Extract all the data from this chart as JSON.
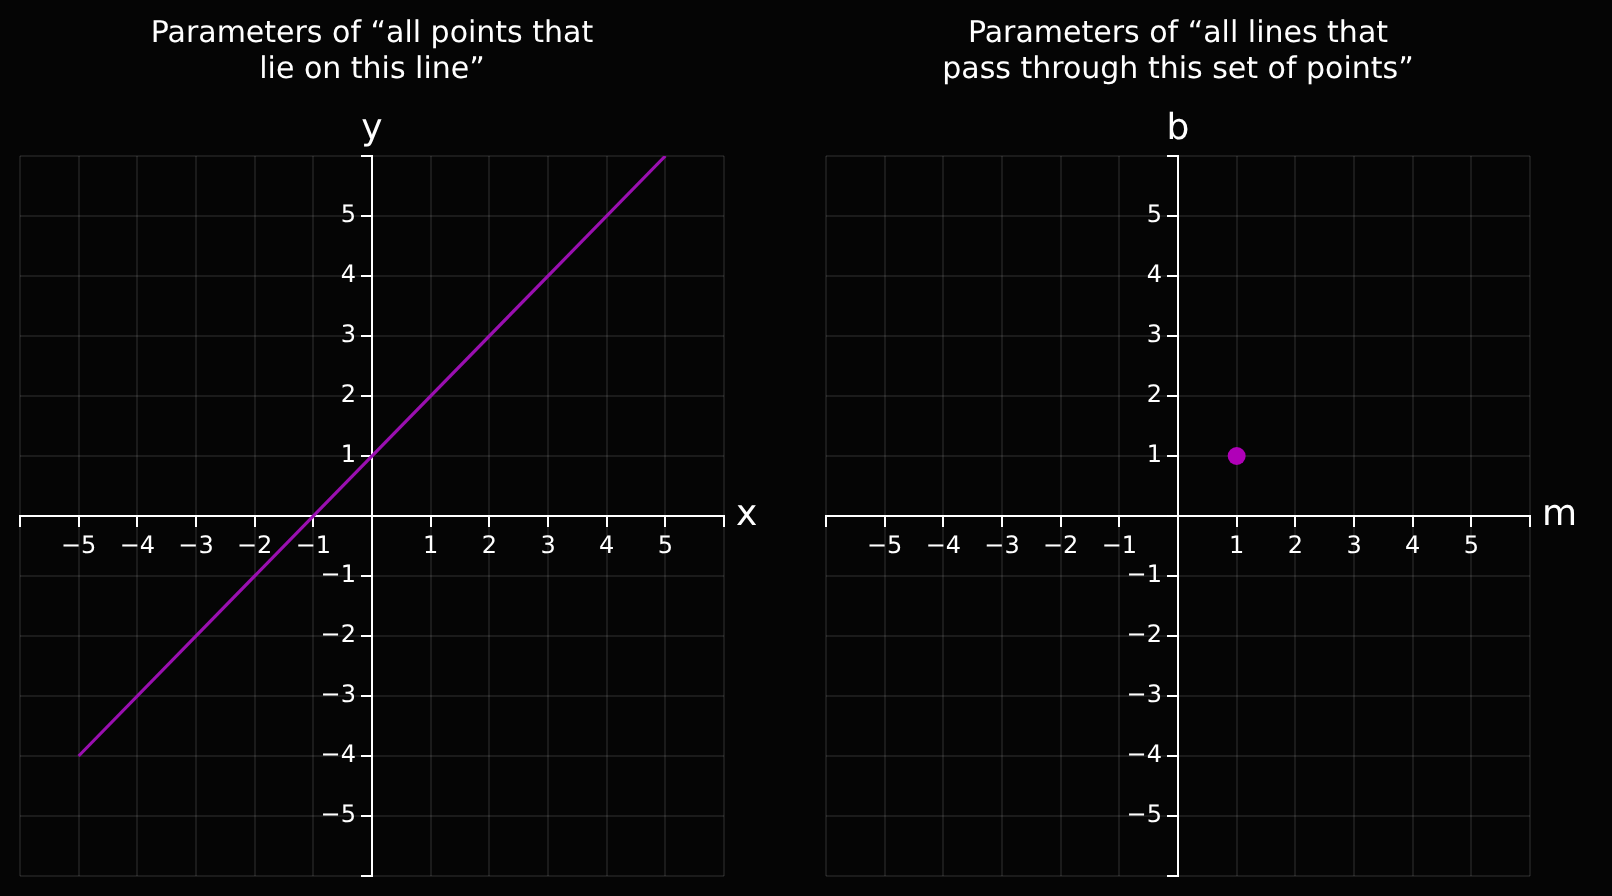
{
  "chart_data": [
    {
      "type": "line",
      "title": "Parameters of “all points that\nlie on this line”",
      "xlabel": "x",
      "ylabel": "y",
      "x": [
        -5,
        5
      ],
      "series": [
        {
          "color": "#9a0fb0",
          "values": [
            -4,
            6
          ]
        }
      ],
      "xlim": [
        -6,
        6
      ],
      "ylim": [
        -6,
        6
      ],
      "xticks": [
        {
          "value": -6,
          "label": null
        },
        {
          "value": -5,
          "label": "−5"
        },
        {
          "value": -4,
          "label": "−4"
        },
        {
          "value": -3,
          "label": "−3"
        },
        {
          "value": -2,
          "label": "−2"
        },
        {
          "value": -1,
          "label": "−1"
        },
        {
          "value": 0,
          "label": null
        },
        1,
        2,
        3,
        4,
        5,
        {
          "value": 6,
          "label": null
        }
      ],
      "yticks": [
        {
          "value": -6,
          "label": null
        },
        {
          "value": -5,
          "label": "−5"
        },
        {
          "value": -4,
          "label": "−4"
        },
        {
          "value": -3,
          "label": "−3"
        },
        {
          "value": -2,
          "label": "−2"
        },
        {
          "value": -1,
          "label": "−1"
        },
        {
          "value": 0,
          "label": null
        },
        1,
        2,
        3,
        4,
        5,
        {
          "value": 6,
          "label": null
        }
      ],
      "grid": true,
      "legend": false,
      "marker": "none",
      "line_style": "solid"
    },
    {
      "type": "scatter",
      "title": "Parameters of “all lines that\npass through this set of points”",
      "xlabel": "m",
      "ylabel": "b",
      "x": [
        1
      ],
      "series": [
        {
          "color": "#b000b8",
          "values": [
            1
          ]
        }
      ],
      "xlim": [
        -6,
        6
      ],
      "ylim": [
        -6,
        6
      ],
      "xticks": [
        {
          "value": -6,
          "label": null
        },
        {
          "value": -5,
          "label": "−5"
        },
        {
          "value": -4,
          "label": "−4"
        },
        {
          "value": -3,
          "label": "−3"
        },
        {
          "value": -2,
          "label": "−2"
        },
        {
          "value": -1,
          "label": "−1"
        },
        {
          "value": 0,
          "label": null
        },
        1,
        2,
        3,
        4,
        5,
        {
          "value": 6,
          "label": null
        }
      ],
      "yticks": [
        {
          "value": -6,
          "label": null
        },
        {
          "value": -5,
          "label": "−5"
        },
        {
          "value": -4,
          "label": "−4"
        },
        {
          "value": -3,
          "label": "−3"
        },
        {
          "value": -2,
          "label": "−2"
        },
        {
          "value": -1,
          "label": "−1"
        },
        {
          "value": 0,
          "label": null
        },
        1,
        2,
        3,
        4,
        5,
        {
          "value": 6,
          "label": null
        }
      ],
      "grid": true,
      "legend": false,
      "marker": "circle"
    }
  ]
}
